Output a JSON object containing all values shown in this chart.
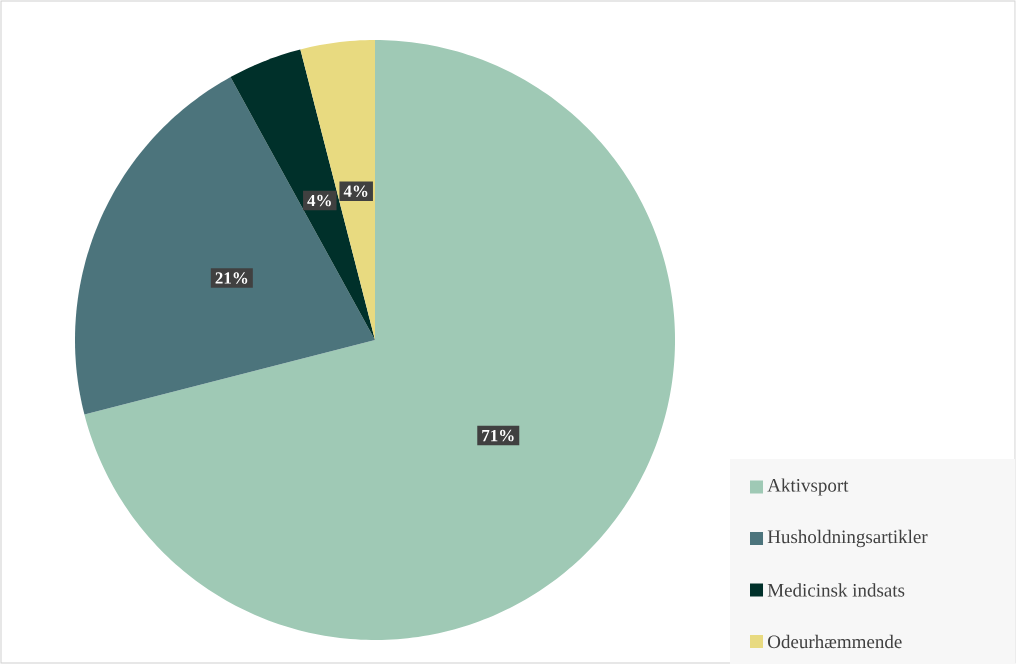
{
  "chart_data": {
    "type": "pie",
    "categories": [
      "Aktivsport",
      "Husholdningsartikler",
      "Medicinsk indsats",
      "Odeurhæmmende"
    ],
    "values": [
      71,
      21,
      4,
      4
    ],
    "colors": [
      "#9fc9b5",
      "#4c747c",
      "#00302a",
      "#e8da80"
    ],
    "value_labels": [
      "71%",
      "21%",
      "4%",
      "4%"
    ],
    "legend": "bottom right"
  }
}
